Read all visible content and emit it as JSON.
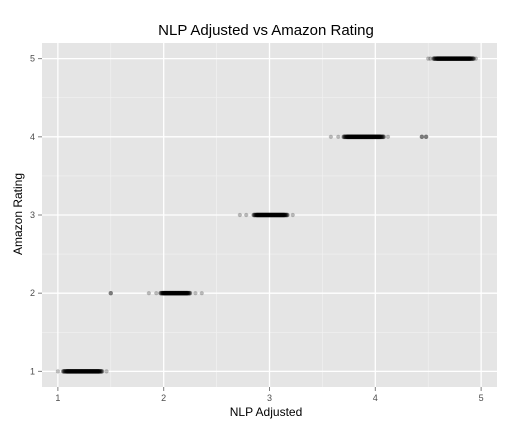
{
  "chart_data": {
    "type": "scatter",
    "title": "NLP Adjusted vs Amazon Rating",
    "xlabel": "NLP Adjusted",
    "ylabel": "Amazon Rating",
    "xlim": [
      0.85,
      5.15
    ],
    "ylim": [
      0.8,
      5.2
    ],
    "x_ticks": [
      1,
      2,
      3,
      4,
      5
    ],
    "y_ticks": [
      1,
      2,
      3,
      4,
      5
    ],
    "grid": true,
    "background_color": "#e5e5e5",
    "point_color": "#000000",
    "clusters": [
      {
        "y": 1,
        "dense_range": [
          1.05,
          1.42
        ],
        "sparse_points": [
          1.0,
          1.46
        ],
        "outliers": []
      },
      {
        "y": 2,
        "dense_range": [
          1.97,
          2.25
        ],
        "sparse_points": [
          1.86,
          1.93,
          2.3,
          2.36
        ],
        "outliers": [
          1.5
        ]
      },
      {
        "y": 3,
        "dense_range": [
          2.85,
          3.17
        ],
        "sparse_points": [
          2.72,
          2.78,
          3.22
        ],
        "outliers": []
      },
      {
        "y": 4,
        "dense_range": [
          3.7,
          4.08
        ],
        "sparse_points": [
          3.58,
          3.65,
          4.12
        ],
        "outliers": [
          4.44,
          4.48
        ]
      },
      {
        "y": 5,
        "dense_range": [
          4.55,
          4.93
        ],
        "sparse_points": [
          4.5,
          4.52,
          4.95
        ],
        "outliers": []
      }
    ]
  }
}
